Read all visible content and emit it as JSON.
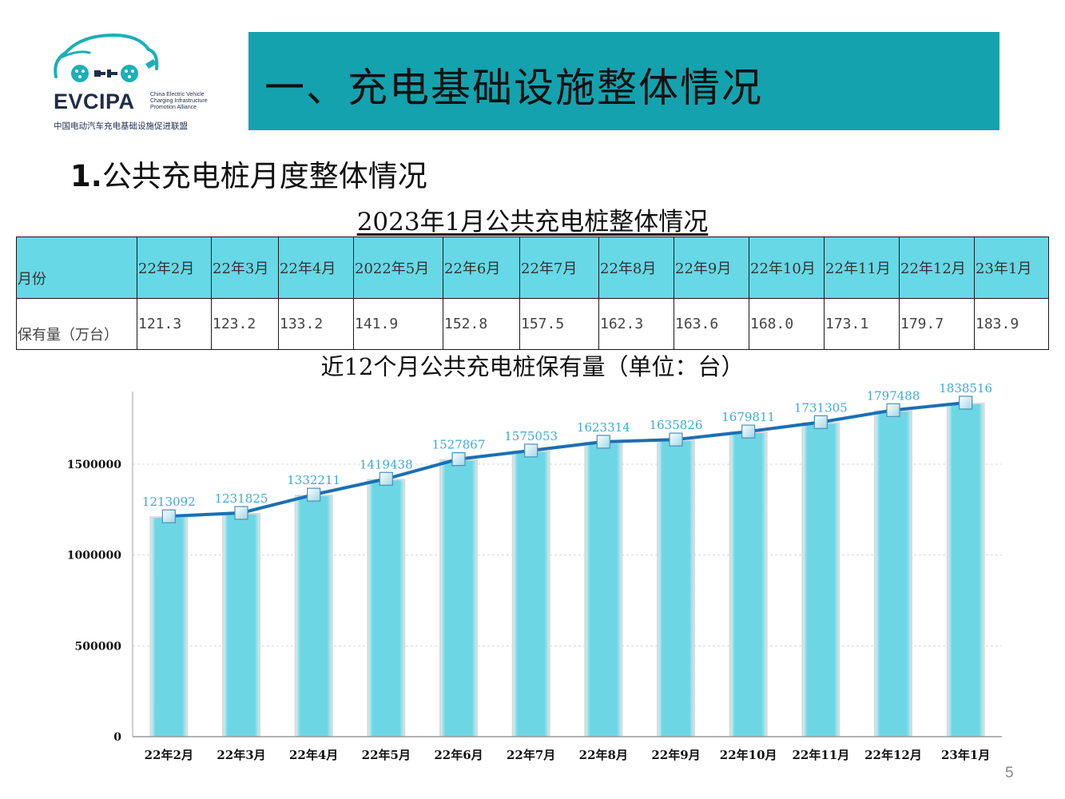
{
  "logo": {
    "brand": "EVCIPA",
    "english_lines": [
      "China Electric Vehicle",
      "Charging Infrastructure",
      "Promotion Alliance"
    ],
    "chinese": "中国电动汽车充电基础设施促进联盟",
    "color": "#1f2d4a",
    "accent": "#1ab0b8"
  },
  "banner": {
    "title": "一、充电基础设施整体情况",
    "color": "#14a2ae"
  },
  "section_title": {
    "number": "1.",
    "text": "公共充电桩月度整体情况"
  },
  "table": {
    "title": "2023年1月公共充电桩整体情况",
    "header_label": "月份",
    "value_label": "保有量（万台）",
    "months": [
      "22年2月",
      "22年3月",
      "22年4月",
      "2022年5月",
      "22年6月",
      "22年7月",
      "22年8月",
      "22年9月",
      "22年10月",
      "22年11月",
      "22年12月",
      "23年1月"
    ],
    "values": [
      "121.3",
      "123.2",
      "133.2",
      "141.9",
      "152.8",
      "157.5",
      "162.3",
      "163.6",
      "168.0",
      "173.1",
      "179.7",
      "183.9"
    ],
    "header_color": "#67d8e6"
  },
  "chart_title": "近12个月公共充电桩保有量（单位：台）",
  "chart_data": {
    "type": "bar",
    "categories": [
      "22年2月",
      "22年3月",
      "22年4月",
      "22年5月",
      "22年6月",
      "22年7月",
      "22年8月",
      "22年9月",
      "22年10月",
      "22年11月",
      "22年12月",
      "23年1月"
    ],
    "series": [
      {
        "type": "bar",
        "values": [
          1213092,
          1231825,
          1332211,
          1419438,
          1527867,
          1575053,
          1623314,
          1635826,
          1679811,
          1731305,
          1797488,
          1838516
        ],
        "color": "#6dd6e4"
      },
      {
        "type": "line",
        "values": [
          1213092,
          1231825,
          1332211,
          1419438,
          1527867,
          1575053,
          1623314,
          1635826,
          1679811,
          1731305,
          1797488,
          1838516
        ],
        "color": "#1a6fb5"
      }
    ],
    "data_labels": [
      "1213092",
      "1231825",
      "1332211",
      "1419438",
      "1527867",
      "1575053",
      "1623314",
      "1635826",
      "1679811",
      "1731305",
      "1797488",
      "1838516"
    ],
    "data_label_color": "#3fa9d6",
    "ylim": [
      0,
      1900000
    ],
    "yticks": [
      0,
      500000,
      1000000,
      1500000
    ],
    "ytick_labels": [
      "0",
      "500000",
      "1000000",
      "1500000"
    ],
    "grid": true,
    "xlabel": "",
    "ylabel": ""
  },
  "page_number": "5"
}
